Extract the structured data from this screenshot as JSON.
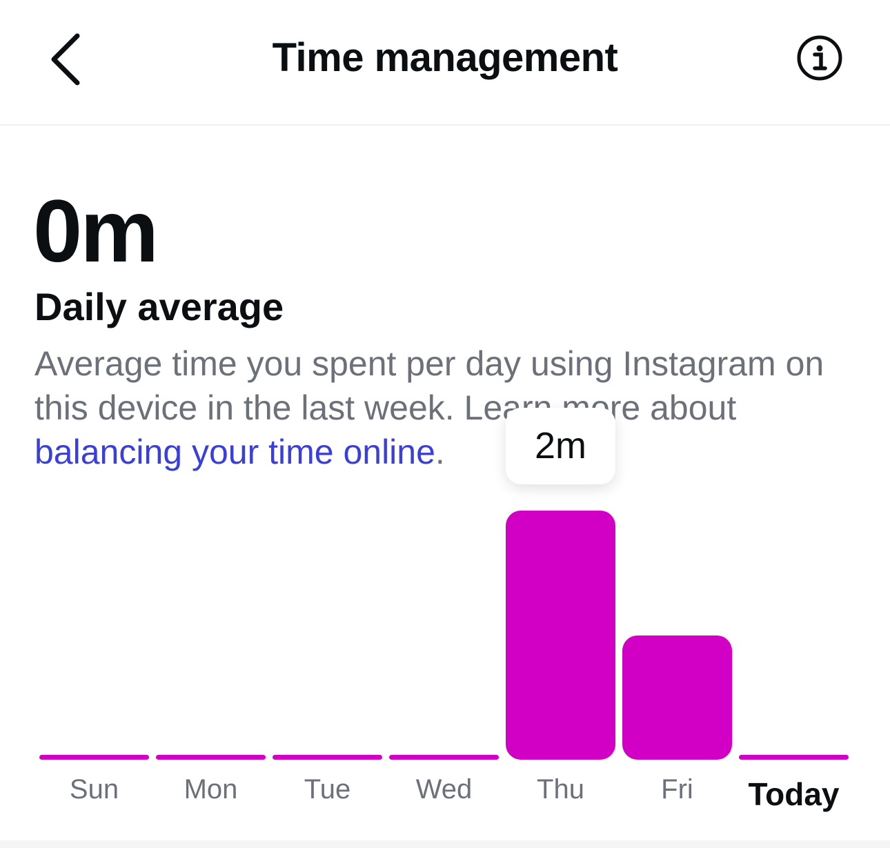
{
  "header": {
    "title": "Time management",
    "back_icon": "chevron-left-icon",
    "info_icon": "info-circle-icon"
  },
  "summary": {
    "value": "0m",
    "heading": "Daily average",
    "description": "Average time you spent per day using Instagram on this device in the last week. Learn more about ",
    "link": "balancing your time online",
    "period": "."
  },
  "chart_data": {
    "type": "bar",
    "categories": [
      "Sun",
      "Mon",
      "Tue",
      "Wed",
      "Thu",
      "Fri",
      "Today"
    ],
    "values": [
      0,
      0,
      0,
      0,
      2,
      1,
      0
    ],
    "unit": "minutes",
    "highlighted": "Thu",
    "tooltip": "2m",
    "color": "#d200c4"
  }
}
